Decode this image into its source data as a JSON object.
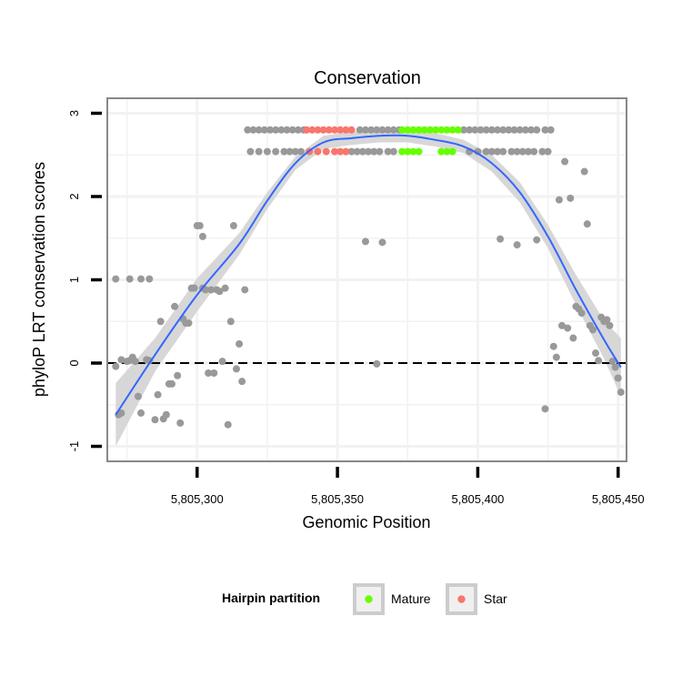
{
  "chart_data": {
    "type": "scatter",
    "title": "Conservation",
    "xlabel": "Genomic Position",
    "ylabel": "phyloP LRT conservation scores",
    "xlim": [
      5805268,
      5805453
    ],
    "ylim": [
      -1.18,
      3.18
    ],
    "x_ticks": [
      5805300,
      5805350,
      5805400,
      5805450
    ],
    "x_tick_labels": [
      "5,805,300",
      "5,805,350",
      "5,805,400",
      "5,805,450"
    ],
    "y_ticks": [
      -1,
      0,
      1,
      2,
      3
    ],
    "y_tick_labels": [
      "-1",
      "0",
      "1",
      "2",
      "3"
    ],
    "grid": true,
    "reference_line": {
      "y": 0,
      "style": "dashed"
    },
    "legend": {
      "title": "Hairpin partition",
      "position": "bottom",
      "entries": [
        {
          "label": "Mature",
          "color": "#66ff00"
        },
        {
          "label": "Star",
          "color": "#f8766d"
        }
      ]
    },
    "colors": {
      "other": "#999999",
      "mature": "#66ff00",
      "star": "#f8766d",
      "smooth": "#3366ff",
      "ribbon": "#d3d3d3",
      "panel_border": "#888888",
      "grid": "#f2f2f2",
      "text": "#000000"
    },
    "points_other": [
      [
        5805271,
        1.01
      ],
      [
        5805276,
        1.01
      ],
      [
        5805280,
        1.01
      ],
      [
        5805283,
        1.01
      ],
      [
        5805271,
        -0.04
      ],
      [
        5805272,
        -0.62
      ],
      [
        5805273,
        -0.6
      ],
      [
        5805273,
        0.04
      ],
      [
        5805275,
        0.02
      ],
      [
        5805276,
        0.03
      ],
      [
        5805277,
        0.07
      ],
      [
        5805278,
        0.02
      ],
      [
        5805279,
        -0.4
      ],
      [
        5805280,
        -0.6
      ],
      [
        5805282,
        0.04
      ],
      [
        5805283,
        0.03
      ],
      [
        5805285,
        -0.68
      ],
      [
        5805286,
        -0.38
      ],
      [
        5805287,
        0.5
      ],
      [
        5805288,
        -0.67
      ],
      [
        5805289,
        -0.62
      ],
      [
        5805290,
        -0.25
      ],
      [
        5805291,
        -0.25
      ],
      [
        5805292,
        0.68
      ],
      [
        5805293,
        -0.15
      ],
      [
        5805294,
        -0.72
      ],
      [
        5805295,
        0.53
      ],
      [
        5805296,
        0.48
      ],
      [
        5805297,
        0.48
      ],
      [
        5805298,
        0.9
      ],
      [
        5805299,
        0.9
      ],
      [
        5805300,
        1.65
      ],
      [
        5805301,
        1.65
      ],
      [
        5805302,
        1.52
      ],
      [
        5805302,
        0.9
      ],
      [
        5805303,
        0.88
      ],
      [
        5805304,
        -0.12
      ],
      [
        5805305,
        0.88
      ],
      [
        5805306,
        -0.12
      ],
      [
        5805307,
        0.88
      ],
      [
        5805308,
        0.86
      ],
      [
        5805309,
        0.02
      ],
      [
        5805310,
        0.9
      ],
      [
        5805311,
        -0.74
      ],
      [
        5805312,
        0.5
      ],
      [
        5805313,
        1.65
      ],
      [
        5805314,
        -0.07
      ],
      [
        5805315,
        0.23
      ],
      [
        5805316,
        -0.22
      ],
      [
        5805317,
        0.88
      ],
      [
        5805360,
        1.46
      ],
      [
        5805364,
        -0.01
      ],
      [
        5805366,
        1.45
      ],
      [
        5805408,
        1.49
      ],
      [
        5805414,
        1.42
      ],
      [
        5805421,
        1.48
      ],
      [
        5805424,
        -0.55
      ],
      [
        5805427,
        0.2
      ],
      [
        5805428,
        0.07
      ],
      [
        5805429,
        1.96
      ],
      [
        5805430,
        0.45
      ],
      [
        5805431,
        2.42
      ],
      [
        5805432,
        0.42
      ],
      [
        5805433,
        1.98
      ],
      [
        5805434,
        0.3
      ],
      [
        5805435,
        0.68
      ],
      [
        5805436,
        0.65
      ],
      [
        5805437,
        0.6
      ],
      [
        5805438,
        2.3
      ],
      [
        5805439,
        1.67
      ],
      [
        5805440,
        0.45
      ],
      [
        5805441,
        0.4
      ],
      [
        5805442,
        0.12
      ],
      [
        5805443,
        0.03
      ],
      [
        5805444,
        0.55
      ],
      [
        5805445,
        0.5
      ],
      [
        5805446,
        0.52
      ],
      [
        5805447,
        0.45
      ],
      [
        5805448,
        0.02
      ],
      [
        5805449,
        -0.05
      ],
      [
        5805450,
        -0.18
      ],
      [
        5805451,
        -0.35
      ],
      [
        5805318,
        2.8
      ],
      [
        5805320,
        2.8
      ],
      [
        5805322,
        2.8
      ],
      [
        5805324,
        2.8
      ],
      [
        5805326,
        2.8
      ],
      [
        5805328,
        2.8
      ],
      [
        5805330,
        2.8
      ],
      [
        5805332,
        2.8
      ],
      [
        5805334,
        2.8
      ],
      [
        5805336,
        2.8
      ],
      [
        5805338,
        2.8
      ],
      [
        5805358,
        2.8
      ],
      [
        5805360,
        2.8
      ],
      [
        5805362,
        2.8
      ],
      [
        5805364,
        2.8
      ],
      [
        5805366,
        2.8
      ],
      [
        5805368,
        2.8
      ],
      [
        5805370,
        2.8
      ],
      [
        5805372,
        2.8
      ],
      [
        5805395,
        2.8
      ],
      [
        5805397,
        2.8
      ],
      [
        5805399,
        2.8
      ],
      [
        5805401,
        2.8
      ],
      [
        5805403,
        2.8
      ],
      [
        5805405,
        2.8
      ],
      [
        5805407,
        2.8
      ],
      [
        5805409,
        2.8
      ],
      [
        5805411,
        2.8
      ],
      [
        5805413,
        2.8
      ],
      [
        5805415,
        2.8
      ],
      [
        5805417,
        2.8
      ],
      [
        5805419,
        2.8
      ],
      [
        5805421,
        2.8
      ],
      [
        5805424,
        2.8
      ],
      [
        5805426,
        2.8
      ],
      [
        5805319,
        2.54
      ],
      [
        5805322,
        2.54
      ],
      [
        5805325,
        2.54
      ],
      [
        5805328,
        2.54
      ],
      [
        5805331,
        2.54
      ],
      [
        5805333,
        2.54
      ],
      [
        5805335,
        2.54
      ],
      [
        5805337,
        2.54
      ],
      [
        5805355,
        2.54
      ],
      [
        5805357,
        2.54
      ],
      [
        5805359,
        2.54
      ],
      [
        5805361,
        2.54
      ],
      [
        5805363,
        2.54
      ],
      [
        5805365,
        2.54
      ],
      [
        5805368,
        2.54
      ],
      [
        5805370,
        2.54
      ],
      [
        5805397,
        2.54
      ],
      [
        5805400,
        2.54
      ],
      [
        5805403,
        2.54
      ],
      [
        5805405,
        2.54
      ],
      [
        5805407,
        2.54
      ],
      [
        5805409,
        2.54
      ],
      [
        5805412,
        2.54
      ],
      [
        5805414,
        2.54
      ],
      [
        5805416,
        2.54
      ],
      [
        5805418,
        2.54
      ],
      [
        5805420,
        2.54
      ],
      [
        5805423,
        2.54
      ],
      [
        5805425,
        2.54
      ]
    ],
    "points_star": [
      [
        5805339,
        2.8
      ],
      [
        5805341,
        2.8
      ],
      [
        5805343,
        2.8
      ],
      [
        5805345,
        2.8
      ],
      [
        5805347,
        2.8
      ],
      [
        5805349,
        2.8
      ],
      [
        5805351,
        2.8
      ],
      [
        5805353,
        2.8
      ],
      [
        5805355,
        2.8
      ],
      [
        5805340,
        2.54
      ],
      [
        5805343,
        2.54
      ],
      [
        5805346,
        2.54
      ],
      [
        5805349,
        2.54
      ],
      [
        5805351,
        2.54
      ],
      [
        5805353,
        2.54
      ]
    ],
    "points_mature": [
      [
        5805373,
        2.8
      ],
      [
        5805375,
        2.8
      ],
      [
        5805377,
        2.8
      ],
      [
        5805379,
        2.8
      ],
      [
        5805381,
        2.8
      ],
      [
        5805383,
        2.8
      ],
      [
        5805385,
        2.8
      ],
      [
        5805387,
        2.8
      ],
      [
        5805389,
        2.8
      ],
      [
        5805391,
        2.8
      ],
      [
        5805393,
        2.8
      ],
      [
        5805373,
        2.54
      ],
      [
        5805375,
        2.54
      ],
      [
        5805377,
        2.54
      ],
      [
        5805379,
        2.54
      ],
      [
        5805387,
        2.54
      ],
      [
        5805389,
        2.54
      ],
      [
        5805391,
        2.54
      ]
    ],
    "smooth": {
      "x": [
        5805271,
        5805285,
        5805300,
        5805315,
        5805325,
        5805335,
        5805345,
        5805355,
        5805365,
        5805375,
        5805385,
        5805395,
        5805405,
        5805415,
        5805425,
        5805435,
        5805445,
        5805451
      ],
      "y": [
        -0.62,
        0.1,
        0.82,
        1.43,
        1.95,
        2.4,
        2.65,
        2.7,
        2.73,
        2.73,
        2.68,
        2.6,
        2.4,
        2.05,
        1.52,
        0.88,
        0.28,
        -0.05
      ],
      "lower": [
        -1.0,
        -0.1,
        0.62,
        1.3,
        1.85,
        2.32,
        2.57,
        2.62,
        2.65,
        2.65,
        2.6,
        2.52,
        2.3,
        1.93,
        1.38,
        0.7,
        0.05,
        -0.4
      ],
      "upper": [
        -0.24,
        0.3,
        1.02,
        1.56,
        2.05,
        2.48,
        2.73,
        2.78,
        2.81,
        2.81,
        2.76,
        2.68,
        2.5,
        2.17,
        1.66,
        1.06,
        0.51,
        0.3
      ]
    }
  }
}
